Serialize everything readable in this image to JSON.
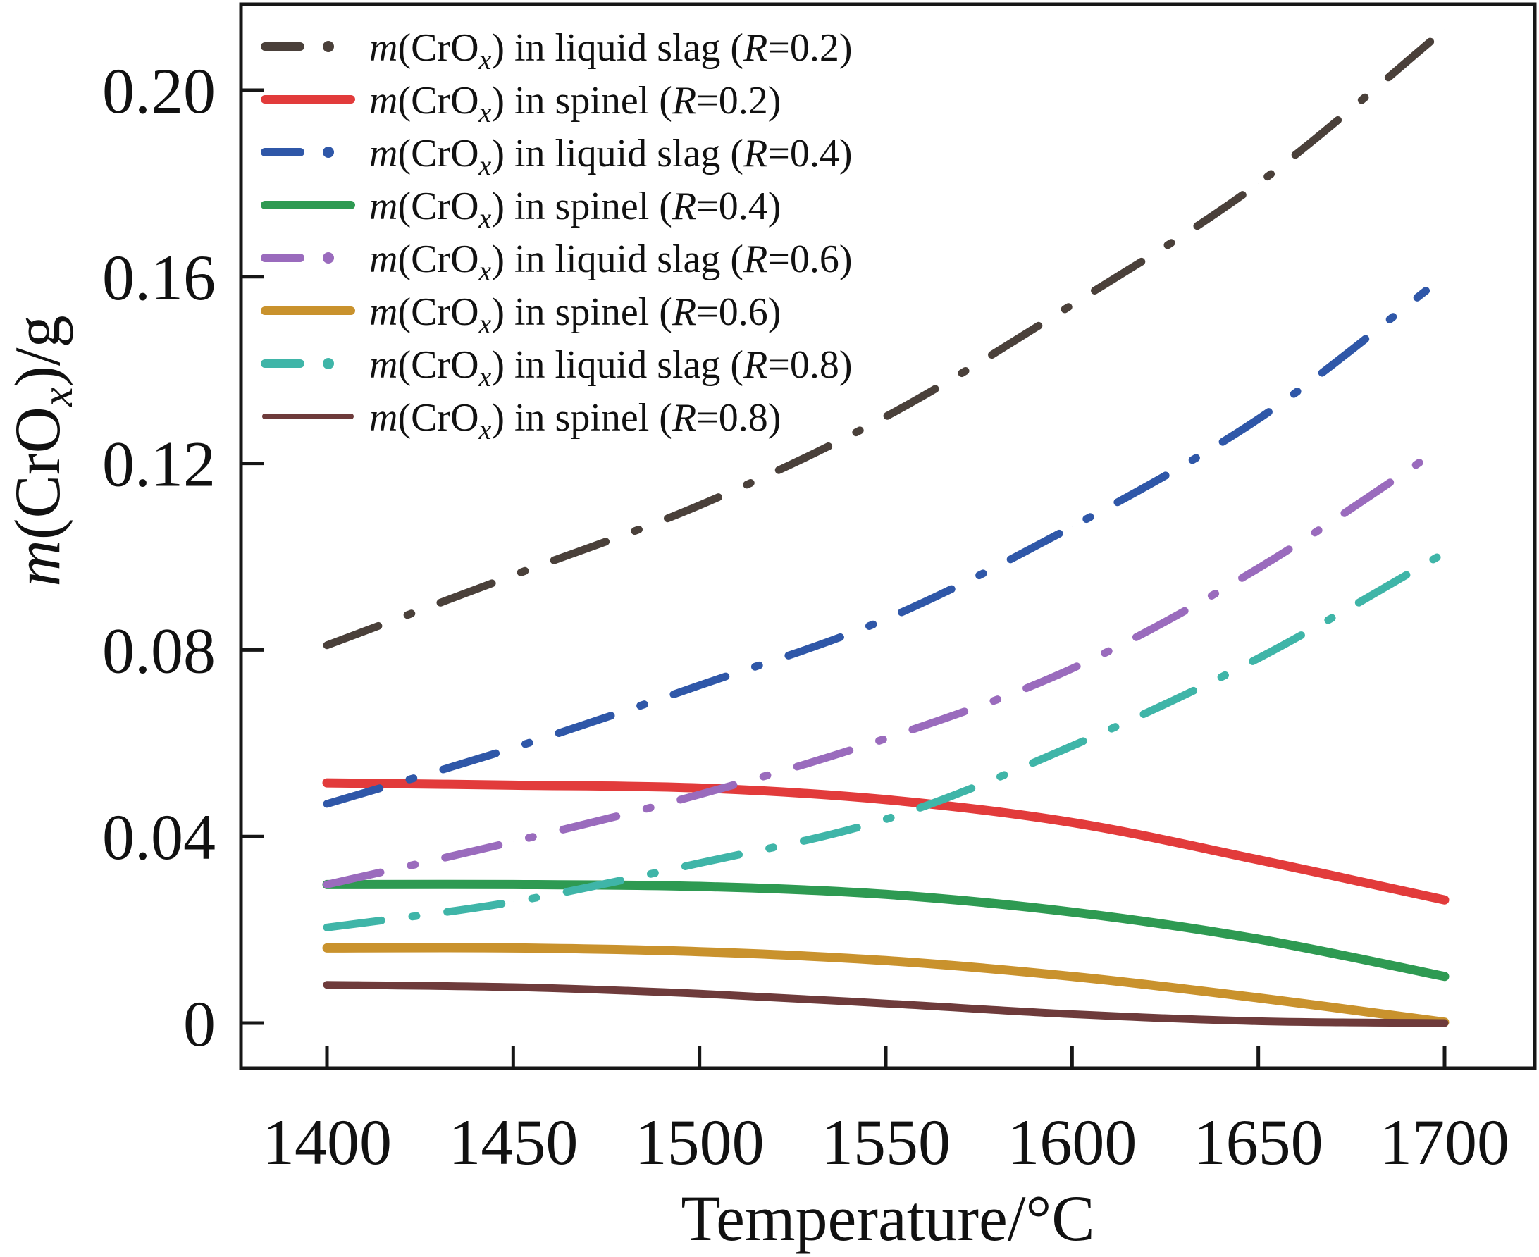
{
  "chart_data": {
    "type": "line",
    "title": "",
    "xlabel": "Temperature/°C",
    "ylabel_parts": {
      "m": "m",
      "open": "(CrO",
      "sub": "x",
      "close": ")/g"
    },
    "ylabel": "m(CrOx)/g",
    "xlim": [
      1400,
      1700
    ],
    "ylim": [
      0,
      0.2
    ],
    "xticks": [
      1400,
      1450,
      1500,
      1550,
      1600,
      1650,
      1700
    ],
    "xtick_labels": [
      "1400",
      "1450",
      "1500",
      "1550",
      "1600",
      "1650",
      "1700"
    ],
    "yticks": [
      0,
      0.04,
      0.08,
      0.12,
      0.16,
      0.2
    ],
    "ytick_labels": [
      "0",
      "0.04",
      "0.08",
      "0.12",
      "0.16",
      "0.20"
    ],
    "grid": false,
    "legend_position": "top-left",
    "x": [
      1400,
      1450,
      1500,
      1550,
      1600,
      1650,
      1700
    ],
    "series": [
      {
        "name": "m(CrOx) in liquid slag (R=0.2)",
        "phase": "liquid slag",
        "R": "0.2",
        "style": "dashdot",
        "color": "#4a403a",
        "values": [
          0.081,
          0.096,
          0.111,
          0.13,
          0.154,
          0.18,
          0.213
        ]
      },
      {
        "name": "m(CrOx) in spinel (R=0.2)",
        "phase": "spinel",
        "R": "0.2",
        "style": "solid",
        "color": "#e23b3b",
        "values": [
          0.0515,
          0.051,
          0.0504,
          0.0479,
          0.043,
          0.035,
          0.0264
        ]
      },
      {
        "name": "m(CrOx) in liquid slag (R=0.4)",
        "phase": "liquid slag",
        "R": "0.4",
        "style": "dashdot",
        "color": "#2f57a8",
        "x_end": 1695,
        "values": [
          0.047,
          0.059,
          0.0724,
          0.0866,
          0.1064,
          0.1295,
          0.157
        ]
      },
      {
        "name": "m(CrOx) in spinel (R=0.4)",
        "phase": "spinel",
        "R": "0.4",
        "style": "solid",
        "color": "#2e9a52",
        "values": [
          0.0297,
          0.0297,
          0.0293,
          0.0276,
          0.0238,
          0.018,
          0.01
        ]
      },
      {
        "name": "m(CrOx) in liquid slag (R=0.6)",
        "phase": "liquid slag",
        "R": "0.6",
        "style": "dashdot",
        "color": "#9a6bbd",
        "values": [
          0.0297,
          0.0389,
          0.049,
          0.061,
          0.076,
          0.0975,
          0.1238
        ]
      },
      {
        "name": "m(CrOx) in spinel (R=0.6)",
        "phase": "spinel",
        "R": "0.6",
        "style": "solid",
        "color": "#c9922d",
        "values": [
          0.0161,
          0.0161,
          0.0153,
          0.0134,
          0.01,
          0.0054,
          0.0002
        ]
      },
      {
        "name": "m(CrOx) in liquid slag (R=0.8)",
        "phase": "liquid slag",
        "R": "0.8",
        "style": "dashdot",
        "color": "#3fb5a8",
        "values": [
          0.0205,
          0.026,
          0.0343,
          0.0437,
          0.0594,
          0.0782,
          0.1008
        ]
      },
      {
        "name": "m(CrOx) in spinel (R=0.8)",
        "phase": "spinel",
        "R": "0.8",
        "style": "solid",
        "color": "#6e3b3b",
        "values": [
          0.0082,
          0.0077,
          0.0063,
          0.0042,
          0.0019,
          0.0004,
          0.0
        ]
      }
    ]
  }
}
